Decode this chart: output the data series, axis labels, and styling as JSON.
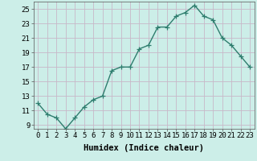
{
  "xlabel": "Humidex (Indice chaleur)",
  "x": [
    0,
    1,
    2,
    3,
    4,
    5,
    6,
    7,
    8,
    9,
    10,
    11,
    12,
    13,
    14,
    15,
    16,
    17,
    18,
    19,
    20,
    21,
    22,
    23
  ],
  "y": [
    12,
    10.5,
    10,
    8.5,
    10,
    11.5,
    12.5,
    13,
    16.5,
    17,
    17,
    19.5,
    20,
    22.5,
    22.5,
    24,
    24.5,
    25.5,
    24,
    23.5,
    21,
    20,
    18.5,
    17
  ],
  "line_color": "#2e7d6e",
  "marker": "+",
  "marker_size": 4,
  "bg_color": "#cceee8",
  "grid_color_v": "#c8b8c8",
  "grid_color_h": "#c8b8c8",
  "ylim": [
    8.5,
    26
  ],
  "yticks": [
    9,
    11,
    13,
    15,
    17,
    19,
    21,
    23,
    25
  ],
  "xticks": [
    0,
    1,
    2,
    3,
    4,
    5,
    6,
    7,
    8,
    9,
    10,
    11,
    12,
    13,
    14,
    15,
    16,
    17,
    18,
    19,
    20,
    21,
    22,
    23
  ],
  "xlabel_fontsize": 7.5,
  "tick_fontsize": 6.5,
  "line_width": 1.0
}
